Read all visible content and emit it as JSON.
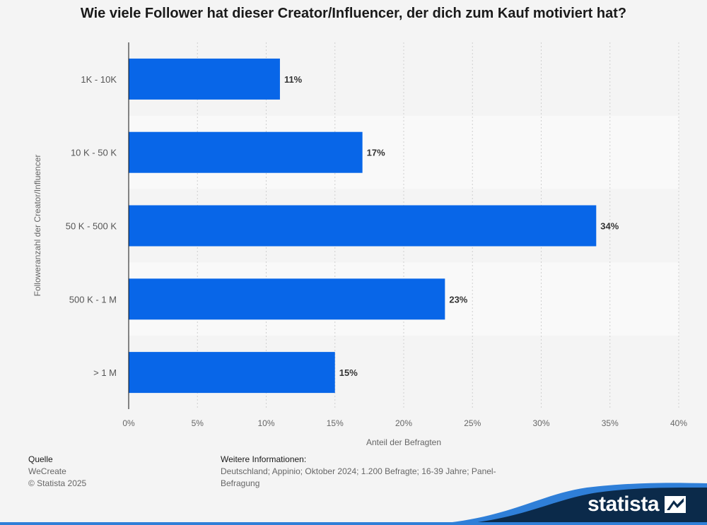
{
  "chart_data": {
    "type": "bar",
    "orientation": "horizontal",
    "title": "Wie viele Follower hat dieser Creator/Influencer, der dich zum Kauf motiviert hat?",
    "categories": [
      "1K - 10K",
      "10 K - 50 K",
      "50 K - 500 K",
      "500 K - 1 M",
      "> 1 M"
    ],
    "values": [
      11,
      17,
      34,
      23,
      15
    ],
    "value_labels": [
      "11%",
      "17%",
      "34%",
      "23%",
      "15%"
    ],
    "xlabel": "Anteil der Befragten",
    "ylabel": "Followeranzahl der Creator/Influencer",
    "xlim": [
      0,
      40
    ],
    "xticks": [
      0,
      5,
      10,
      15,
      20,
      25,
      30,
      35,
      40
    ],
    "xtick_labels": [
      "0%",
      "5%",
      "10%",
      "15%",
      "20%",
      "25%",
      "30%",
      "35%",
      "40%"
    ],
    "bar_color": "#0866e8",
    "grid": true
  },
  "footer": {
    "source_label": "Quelle",
    "source_name": "WeCreate",
    "copyright": "© Statista 2025",
    "info_label": "Weitere Informationen:",
    "info_line1": "Deutschland; Appinio; Oktober 2024; 1.200 Befragte; 16-39 Jahre; Panel-",
    "info_line2": "Befragung"
  },
  "brand": {
    "name": "statista",
    "wave_color": "#0b2a4a",
    "wave_accent": "#2f7fd8"
  }
}
